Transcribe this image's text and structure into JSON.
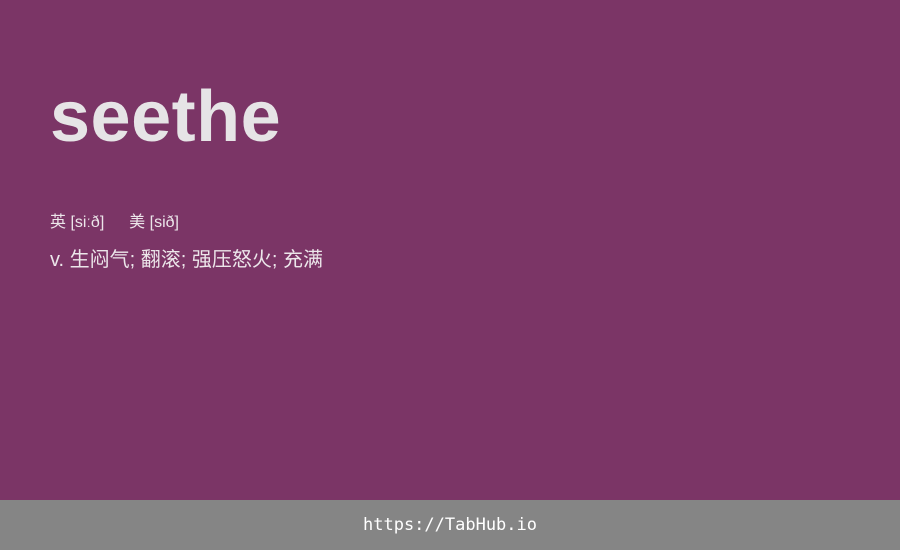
{
  "entry": {
    "word": "seethe",
    "phonetics": {
      "uk_label": "英",
      "uk_ipa": "[siːð]",
      "us_label": "美",
      "us_ipa": "[sið]"
    },
    "definition": "v. 生闷气; 翻滚; 强压怒火; 充满"
  },
  "footer": {
    "link_text": "https://TabHub.io"
  },
  "colors": {
    "background": "#7b3566",
    "footer_background": "#858585",
    "word_text": "#e6e4e6"
  }
}
